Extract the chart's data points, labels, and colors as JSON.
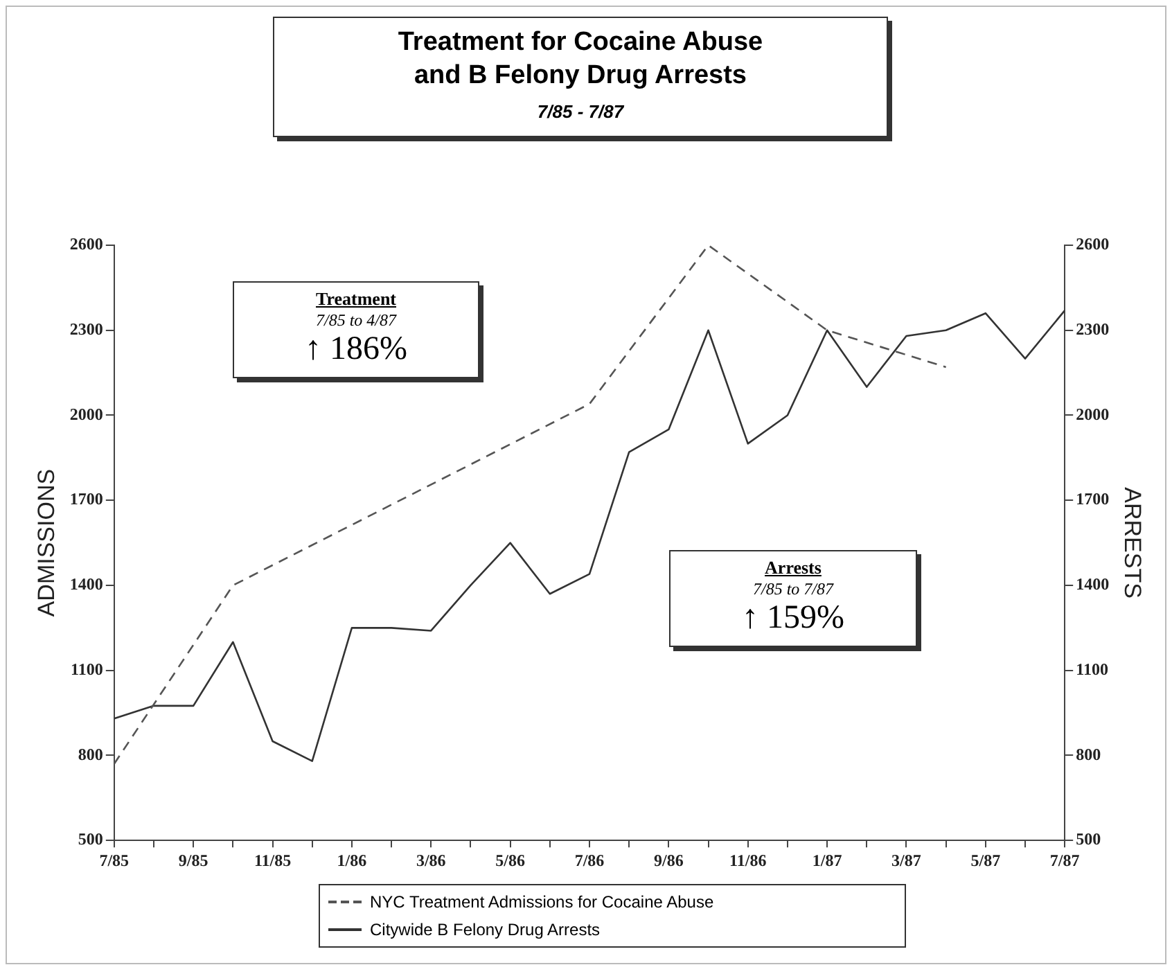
{
  "chart_data": {
    "type": "line",
    "title": "Treatment for Cocaine Abuse\nand B Felony Drug Arrests",
    "subtitle": "7/85 - 7/87",
    "ylabel": "ADMISSIONS",
    "y2label": "ARRESTS",
    "x": [
      "1985-07",
      "1985-08",
      "1985-09",
      "1985-10",
      "1985-11",
      "1985-12",
      "1986-01",
      "1986-02",
      "1986-03",
      "1986-04",
      "1986-05",
      "1986-06",
      "1986-07",
      "1986-08",
      "1986-09",
      "1986-10",
      "1986-11",
      "1986-12",
      "1987-01",
      "1987-02",
      "1987-03",
      "1987-04",
      "1987-05",
      "1987-06",
      "1987-07"
    ],
    "xlim": [
      "1985-07",
      "1987-07"
    ],
    "xticks": [
      {
        "value": "1985-07",
        "label": "7/85"
      },
      {
        "value": "1985-08",
        "label": null
      },
      {
        "value": "1985-09",
        "label": "9/85"
      },
      {
        "value": "1985-10",
        "label": null
      },
      {
        "value": "1985-11",
        "label": "11/85"
      },
      {
        "value": "1985-12",
        "label": null
      },
      {
        "value": "1986-01",
        "label": "1/86"
      },
      {
        "value": "1986-02",
        "label": null
      },
      {
        "value": "1986-03",
        "label": "3/86"
      },
      {
        "value": "1986-04",
        "label": null
      },
      {
        "value": "1986-05",
        "label": "5/86"
      },
      {
        "value": "1986-06",
        "label": null
      },
      {
        "value": "1986-07",
        "label": "7/86"
      },
      {
        "value": "1986-08",
        "label": null
      },
      {
        "value": "1986-09",
        "label": "9/86"
      },
      {
        "value": "1986-10",
        "label": null
      },
      {
        "value": "1986-11",
        "label": "11/86"
      },
      {
        "value": "1986-12",
        "label": null
      },
      {
        "value": "1987-01",
        "label": "1/87"
      },
      {
        "value": "1987-02",
        "label": null
      },
      {
        "value": "1987-03",
        "label": "3/87"
      },
      {
        "value": "1987-04",
        "label": null
      },
      {
        "value": "1987-05",
        "label": "5/87"
      },
      {
        "value": "1987-06",
        "label": null
      },
      {
        "value": "1987-07",
        "label": "7/87"
      }
    ],
    "ylim": [
      500,
      2600
    ],
    "yticks": [
      500,
      800,
      1100,
      1400,
      1700,
      2000,
      2300,
      2600
    ],
    "y2lim": [
      500,
      2600
    ],
    "y2ticks": [
      500,
      800,
      1100,
      1400,
      1700,
      2000,
      2300,
      2600
    ],
    "series": [
      {
        "name": "NYC Treatment Admissions for Cocaine Abuse",
        "color": "#555555",
        "line_style": "dashed",
        "x": [
          "1985-07",
          "1985-10",
          "1986-07",
          "1986-10",
          "1987-01",
          "1987-04"
        ],
        "values": [
          770,
          1400,
          2040,
          2600,
          2300,
          2170
        ]
      },
      {
        "name": "Citywide B Felony Drug Arrests",
        "color": "#333333",
        "line_style": "solid",
        "values": [
          930,
          975,
          975,
          1200,
          850,
          780,
          1250,
          1250,
          1240,
          1400,
          1550,
          1370,
          1440,
          1870,
          1950,
          2300,
          1900,
          2000,
          2300,
          2100,
          2280,
          2300,
          2360,
          2200,
          2370
        ]
      }
    ],
    "legend": "bottom",
    "grid": false,
    "marker": "none",
    "annotations": [
      "Treatment",
      "7/85 to 4/87",
      "↑ 186%",
      "Arrests",
      "7/85 to 7/87",
      "↑ 159%"
    ]
  }
}
